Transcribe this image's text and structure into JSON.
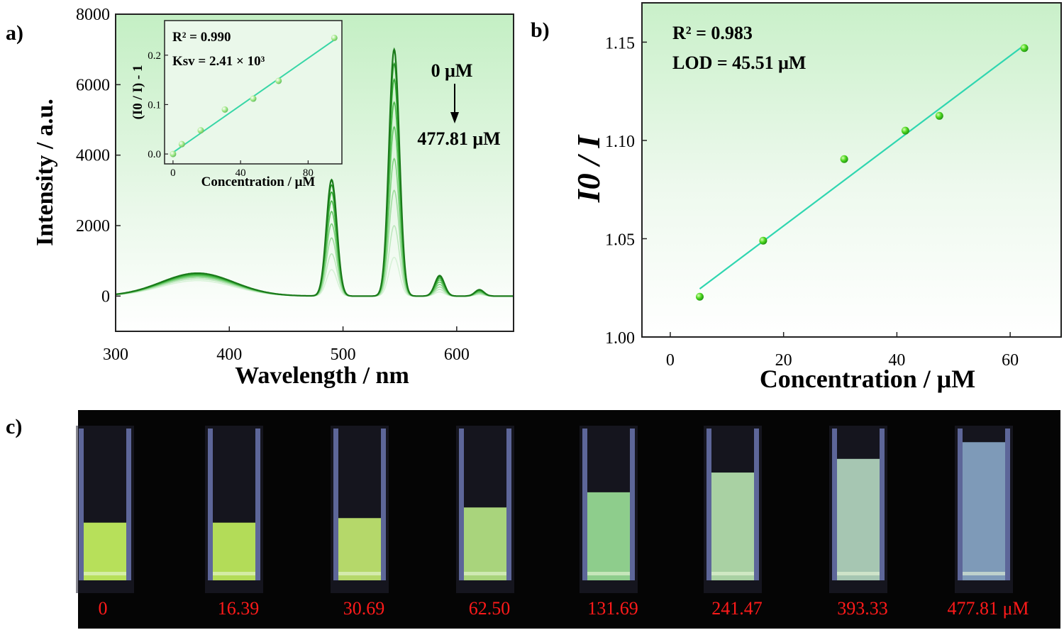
{
  "panels": {
    "a": {
      "letter": "a)"
    },
    "b": {
      "letter": "b)"
    },
    "c": {
      "letter": "c)"
    }
  },
  "chart_data": [
    {
      "panel": "a",
      "type": "line",
      "xlabel": "Wavelength / nm",
      "ylabel": "Intensity / a.u.",
      "xlim": [
        300,
        650
      ],
      "ylim": [
        -1000,
        8000
      ],
      "xticks": [
        300,
        400,
        500,
        600
      ],
      "yticks": [
        0,
        2000,
        4000,
        6000,
        8000
      ],
      "background": "green gradient (light green at top fading to white)",
      "annotations": {
        "top": "0 μM",
        "bottom": "477.81 μM",
        "arrow": "down"
      },
      "peaks": [
        {
          "x": 372,
          "width": 32,
          "heights": [
            650,
            640,
            625,
            605,
            585,
            560,
            530,
            490,
            440
          ]
        },
        {
          "x": 490,
          "width": 4.6,
          "heights": [
            3300,
            3150,
            2950,
            2700,
            2400,
            2050,
            1650,
            1200,
            750
          ]
        },
        {
          "x": 545,
          "width": 4.6,
          "heights": [
            7000,
            6600,
            6150,
            5500,
            4800,
            3900,
            3000,
            2000,
            1100
          ]
        },
        {
          "x": 585,
          "width": 4.2,
          "heights": [
            580,
            550,
            510,
            460,
            400,
            330,
            260,
            190,
            120
          ]
        },
        {
          "x": 620,
          "width": 4.0,
          "heights": [
            180,
            170,
            160,
            145,
            125,
            105,
            85,
            65,
            45
          ]
        }
      ],
      "series_colors": [
        "#1a7a1a",
        "#249624",
        "#33aa33",
        "#48b848",
        "#62c562",
        "#80d280",
        "#a0dda0",
        "#bfe8bf",
        "#d8f2d8"
      ],
      "inset": {
        "type": "scatter",
        "xlabel": "Concentration / μM",
        "ylabel": "(I0 / I) - 1",
        "xlim": [
          -5,
          100
        ],
        "ylim": [
          -0.02,
          0.27
        ],
        "xticks": [
          0,
          40,
          80
        ],
        "yticks": [
          0.0,
          0.1,
          0.2
        ],
        "r2_text": "R² = 0.990",
        "ksv_text": "Ksv = 2.41 × 10³",
        "x": [
          0,
          5.2,
          16.4,
          30.7,
          47.5,
          62.5,
          95.5
        ],
        "y": [
          0.0,
          0.02,
          0.048,
          0.09,
          0.112,
          0.148,
          0.235
        ],
        "fit": {
          "x": [
            0,
            96
          ],
          "y": [
            0.003,
            0.232
          ]
        }
      }
    },
    {
      "panel": "b",
      "type": "scatter",
      "xlabel": "Concentration / μM",
      "ylabel": "I0 / I",
      "xlim": [
        -5,
        69
      ],
      "ylim": [
        1.0,
        1.17
      ],
      "xticks": [
        0,
        20,
        40,
        60
      ],
      "yticks": [
        1.0,
        1.05,
        1.1,
        1.15
      ],
      "r2_text": "R² = 0.983",
      "lod_text": "LOD = 45.51 μM",
      "x": [
        5.2,
        16.4,
        30.7,
        41.5,
        47.5,
        62.5
      ],
      "y": [
        1.0205,
        1.049,
        1.0905,
        1.105,
        1.1125,
        1.147
      ],
      "fit": {
        "x": [
          5.2,
          62.5
        ],
        "y": [
          1.0245,
          1.1485
        ]
      }
    }
  ],
  "photo": {
    "labels": [
      "0",
      "16.39",
      "30.69",
      "62.50",
      "131.69",
      "241.47",
      "393.33",
      "477.81 μM"
    ],
    "fill_levels": [
      0.38,
      0.38,
      0.41,
      0.48,
      0.58,
      0.71,
      0.8,
      0.91
    ],
    "fill_colors": [
      "#b7e05a",
      "#b3dc58",
      "#b5d86a",
      "#a9d47c",
      "#8ecd8c",
      "#a9d1a3",
      "#a6c6b2",
      "#7e9ab8"
    ],
    "label_color": "#ff1a1a"
  }
}
